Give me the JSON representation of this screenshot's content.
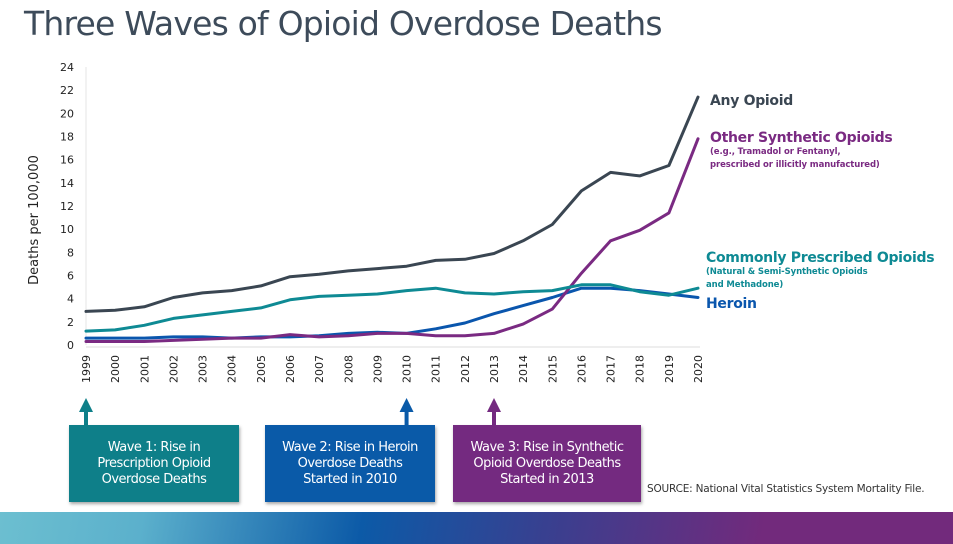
{
  "title": "Three Waves of Opioid Overdose Deaths",
  "colors": {
    "any_opioid": "#3a4652",
    "synthetic": "#7a2a82",
    "prescribed": "#0e8a94",
    "heroin": "#0a56ad",
    "wave1": "#0e7f89",
    "wave2": "#0a5aa8",
    "wave3": "#742a80"
  },
  "chart_data": {
    "type": "line",
    "title": "Three Waves of Opioid Overdose Deaths",
    "xlabel": "",
    "ylabel": "Deaths per 100,000",
    "ylim": [
      0,
      24
    ],
    "yticks": [
      "0",
      "2",
      "4",
      "6",
      "8",
      "10",
      "12",
      "14",
      "16",
      "18",
      "20",
      "22",
      "24"
    ],
    "grid": false,
    "x": [
      "1999",
      "2000",
      "2001",
      "2002",
      "2003",
      "2004",
      "2005",
      "2006",
      "2007",
      "2008",
      "2009",
      "2010",
      "2011",
      "2012",
      "2013",
      "2014",
      "2015",
      "2016",
      "2017",
      "2018",
      "2019",
      "2020"
    ],
    "series": [
      {
        "key": "any",
        "name": "Any Opioid",
        "sub": [],
        "values": [
          2.9,
          3.0,
          3.3,
          4.1,
          4.5,
          4.7,
          5.1,
          5.9,
          6.1,
          6.4,
          6.6,
          6.8,
          7.3,
          7.4,
          7.9,
          9.0,
          10.4,
          13.3,
          14.9,
          14.6,
          15.5,
          21.4
        ]
      },
      {
        "key": "synthetic",
        "name": "Other Synthetic Opioids",
        "sub": [
          "(e.g., Tramadol or Fentanyl,",
          "prescribed or illicitly manufactured)"
        ],
        "values": [
          0.3,
          0.3,
          0.3,
          0.4,
          0.5,
          0.6,
          0.6,
          0.9,
          0.7,
          0.8,
          1.0,
          1.0,
          0.8,
          0.8,
          1.0,
          1.8,
          3.1,
          6.2,
          9.0,
          9.9,
          11.4,
          17.8
        ]
      },
      {
        "key": "prescribed",
        "name": "Commonly Prescribed Opioids",
        "sub": [
          "(Natural & Semi-Synthetic Opioids",
          "and Methadone)"
        ],
        "values": [
          1.2,
          1.3,
          1.7,
          2.3,
          2.6,
          2.9,
          3.2,
          3.9,
          4.2,
          4.3,
          4.4,
          4.7,
          4.9,
          4.5,
          4.4,
          4.6,
          4.7,
          5.2,
          5.2,
          4.6,
          4.3,
          4.9
        ]
      },
      {
        "key": "heroin",
        "name": "Heroin",
        "sub": [],
        "values": [
          0.6,
          0.6,
          0.6,
          0.7,
          0.7,
          0.6,
          0.7,
          0.7,
          0.8,
          1.0,
          1.1,
          1.0,
          1.4,
          1.9,
          2.7,
          3.4,
          4.1,
          4.9,
          4.9,
          4.7,
          4.4,
          4.1
        ]
      }
    ],
    "annotations": [
      {
        "key": "wave1",
        "year": "1999",
        "text": [
          "Wave 1: Rise in",
          "Prescription Opioid",
          "Overdose Deaths"
        ]
      },
      {
        "key": "wave2",
        "year": "2010",
        "text": [
          "Wave 2: Rise in Heroin",
          "Overdose Deaths",
          "Started in 2010"
        ]
      },
      {
        "key": "wave3",
        "year": "2013",
        "text": [
          "Wave 3: Rise in Synthetic",
          "Opioid Overdose Deaths",
          "Started in 2013"
        ]
      }
    ]
  },
  "source": "SOURCE: National Vital Statistics System Mortality File."
}
